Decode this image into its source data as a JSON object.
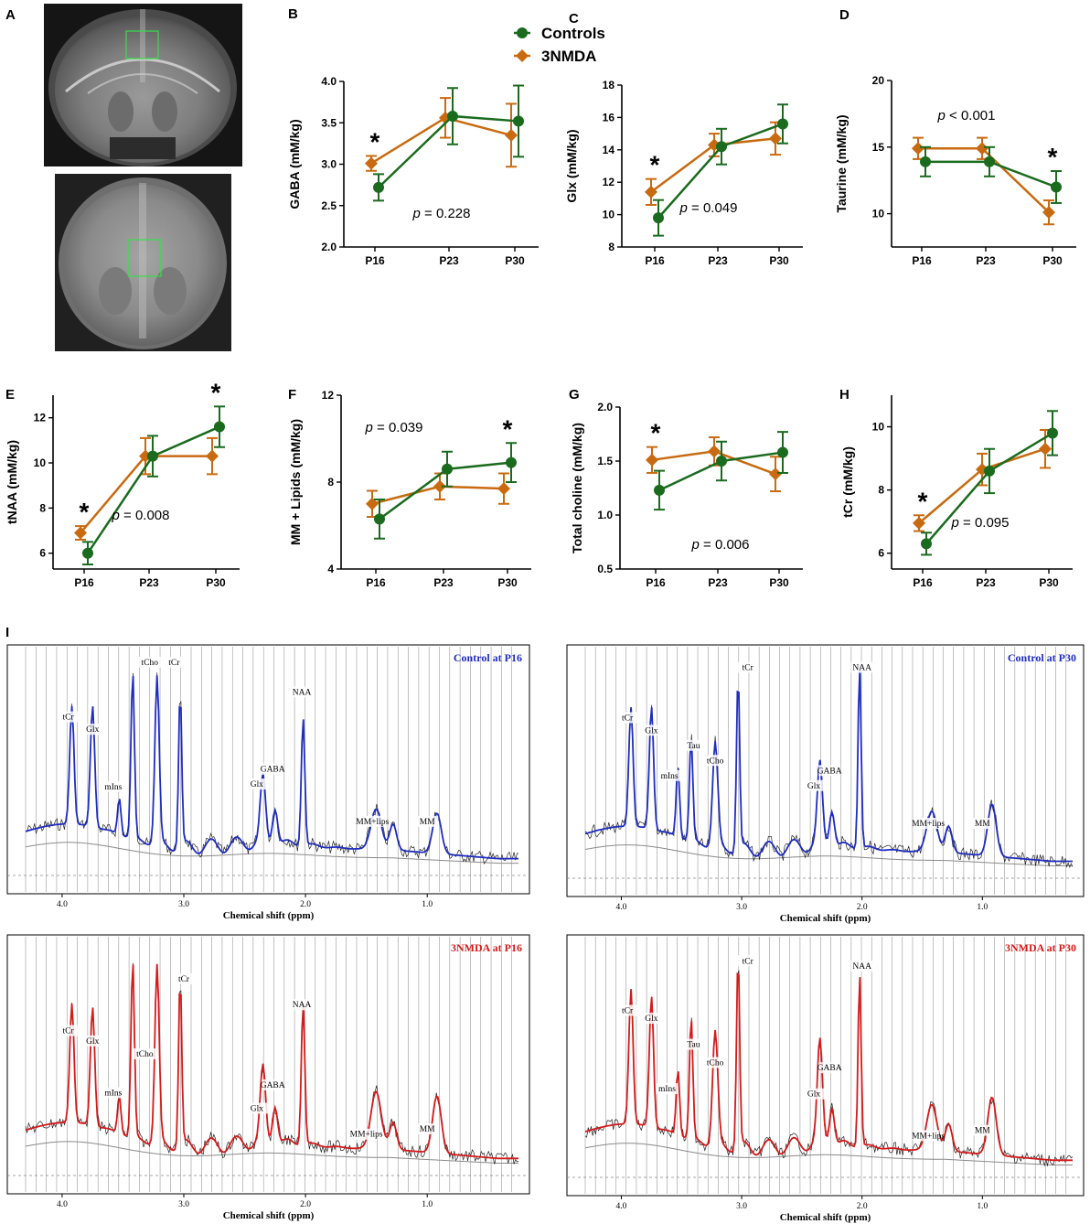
{
  "colors": {
    "controls": "#1a6b1e",
    "nmda": "#c86a10",
    "control_spectrum": "#1f2dbf",
    "nmda_spectrum": "#d41a1a"
  },
  "panel_labels": {
    "A": "A",
    "I": "I"
  },
  "legend": {
    "controls": "Controls",
    "nmda": "3NMDA"
  },
  "chart_data": [
    {
      "id": "B",
      "type": "line",
      "ylabel": "GABA (mM/kg)",
      "categories": [
        "P16",
        "P23",
        "P30"
      ],
      "ylim": [
        2.0,
        4.0
      ],
      "yticks": [
        "2.0",
        "2.5",
        "3.0",
        "3.5",
        "4.0"
      ],
      "series": [
        {
          "name": "Controls",
          "values": [
            2.72,
            3.58,
            3.52
          ],
          "err": [
            0.16,
            0.34,
            0.43
          ]
        },
        {
          "name": "3NMDA",
          "values": [
            3.01,
            3.56,
            3.35
          ],
          "err": [
            0.09,
            0.24,
            0.38
          ]
        }
      ],
      "p_text": {
        "prefix": "p",
        "rest": " = 0.228"
      },
      "stars": [
        0
      ]
    },
    {
      "id": "C",
      "type": "line",
      "ylabel": "Glx (mM/kg)",
      "categories": [
        "P16",
        "P23",
        "P30"
      ],
      "ylim": [
        8,
        18
      ],
      "yticks": [
        "8",
        "10",
        "12",
        "14",
        "16",
        "18"
      ],
      "series": [
        {
          "name": "Controls",
          "values": [
            9.8,
            14.2,
            15.6
          ],
          "err": [
            1.1,
            1.1,
            1.2
          ]
        },
        {
          "name": "3NMDA",
          "values": [
            11.4,
            14.3,
            14.7
          ],
          "err": [
            0.8,
            0.7,
            1.0
          ]
        }
      ],
      "p_text": {
        "prefix": "p",
        "rest": " = 0.049"
      },
      "stars": [
        0
      ]
    },
    {
      "id": "D",
      "type": "line",
      "ylabel": "Taurine (mM/kg)",
      "categories": [
        "P16",
        "P23",
        "P30"
      ],
      "ylim": [
        7.5,
        20
      ],
      "yticks": [
        "10",
        "15",
        "20"
      ],
      "series": [
        {
          "name": "Controls",
          "values": [
            13.9,
            13.9,
            12.0
          ],
          "err": [
            1.1,
            1.1,
            1.2
          ]
        },
        {
          "name": "3NMDA",
          "values": [
            14.9,
            14.9,
            10.1
          ],
          "err": [
            0.8,
            0.8,
            0.9
          ]
        }
      ],
      "p_text": {
        "prefix": "p",
        "rest": " < 0.001"
      },
      "stars": [
        2
      ]
    },
    {
      "id": "E",
      "type": "line",
      "ylabel": "tNAA (mM/kg)",
      "categories": [
        "P16",
        "P23",
        "P30"
      ],
      "ylim": [
        5.3,
        13
      ],
      "yticks": [
        "6",
        "8",
        "10",
        "12"
      ],
      "series": [
        {
          "name": "Controls",
          "values": [
            6.0,
            10.3,
            11.6
          ],
          "err": [
            0.5,
            0.9,
            0.9
          ]
        },
        {
          "name": "3NMDA",
          "values": [
            6.9,
            10.3,
            10.3
          ],
          "err": [
            0.3,
            0.8,
            0.8
          ]
        }
      ],
      "p_text": {
        "prefix": "p",
        "rest": " = 0.008"
      },
      "stars": [
        0,
        2
      ]
    },
    {
      "id": "F",
      "type": "line",
      "ylabel": "MM + Lipids (mM/kg)",
      "categories": [
        "P16",
        "P23",
        "P30"
      ],
      "ylim": [
        4,
        12
      ],
      "yticks": [
        "4",
        "8",
        "12"
      ],
      "series": [
        {
          "name": "Controls",
          "values": [
            6.3,
            8.6,
            8.9
          ],
          "err": [
            0.9,
            0.8,
            0.9
          ]
        },
        {
          "name": "3NMDA",
          "values": [
            7.0,
            7.8,
            7.7
          ],
          "err": [
            0.6,
            0.6,
            0.7
          ]
        }
      ],
      "p_text": {
        "prefix": "p",
        "rest": " = 0.039"
      },
      "stars": [
        2
      ]
    },
    {
      "id": "G",
      "type": "line",
      "ylabel": "Total choline (mM/kg)",
      "categories": [
        "P16",
        "P23",
        "P30"
      ],
      "ylim": [
        0.5,
        2.0
      ],
      "yticks": [
        "0.5",
        "1.0",
        "1.5",
        "2.0"
      ],
      "series": [
        {
          "name": "Controls",
          "values": [
            1.23,
            1.5,
            1.58
          ],
          "err": [
            0.18,
            0.18,
            0.19
          ]
        },
        {
          "name": "3NMDA",
          "values": [
            1.51,
            1.59,
            1.38
          ],
          "err": [
            0.12,
            0.13,
            0.16
          ]
        }
      ],
      "p_text": {
        "prefix": "p",
        "rest": " = 0.006"
      },
      "stars": [
        0
      ]
    },
    {
      "id": "H",
      "type": "line",
      "ylabel": "tCr (mM/kg)",
      "categories": [
        "P16",
        "P23",
        "P30"
      ],
      "ylim": [
        5.5,
        11
      ],
      "yticks": [
        "6",
        "8",
        "10"
      ],
      "series": [
        {
          "name": "Controls",
          "values": [
            6.3,
            8.6,
            9.8
          ],
          "err": [
            0.35,
            0.7,
            0.7
          ]
        },
        {
          "name": "3NMDA",
          "values": [
            6.95,
            8.65,
            9.3
          ],
          "err": [
            0.25,
            0.5,
            0.6
          ]
        }
      ],
      "p_text": {
        "prefix": "p",
        "rest": " = 0.095"
      },
      "stars": [
        0
      ]
    }
  ],
  "spectra": {
    "xlabel": "Chemical shift (ppm)",
    "xticks": [
      "4.0",
      "3.0",
      "2.0",
      "1.0"
    ],
    "panels": [
      {
        "id": "ctrl16",
        "title": "Control at P16",
        "labels": [
          "tCr",
          "Glx",
          "mIns",
          "tCho",
          "tCr",
          "Glx",
          "GABA",
          "NAA",
          "MM+lips",
          "MM"
        ]
      },
      {
        "id": "ctrl30",
        "title": "Control at P30",
        "labels": [
          "tCr",
          "Glx",
          "mIns",
          "Tau",
          "tCho",
          "tCr",
          "Glx",
          "GABA",
          "NAA",
          "MM+lips",
          "MM"
        ]
      },
      {
        "id": "nmda16",
        "title": "3NMDA at P16",
        "labels": [
          "tCr",
          "Glx",
          "mIns",
          "tCho",
          "tCr",
          "Glx",
          "GABA",
          "NAA",
          "MM+lips",
          "MM"
        ]
      },
      {
        "id": "nmda30",
        "title": "3NMDA at P30",
        "labels": [
          "tCr",
          "Glx",
          "mIns",
          "Tau",
          "tCho",
          "tCr",
          "Glx",
          "GABA",
          "NAA",
          "MM+lips",
          "MM"
        ]
      }
    ]
  }
}
